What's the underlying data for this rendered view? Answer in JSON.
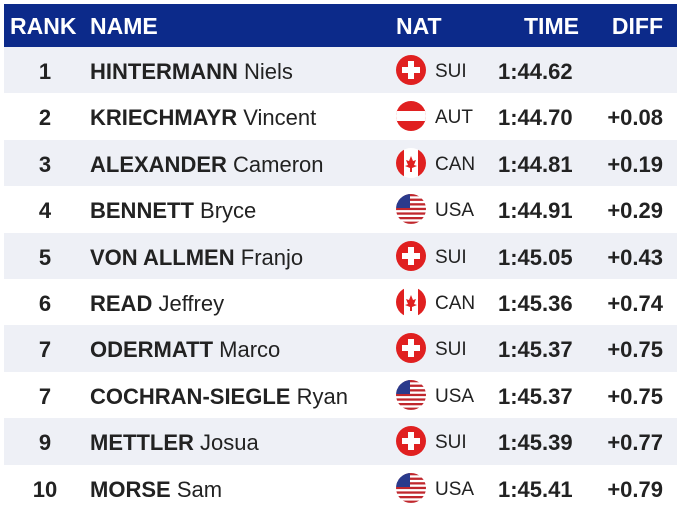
{
  "header": {
    "rank": "RANK",
    "name": "NAME",
    "nat": "NAT",
    "time": "TIME",
    "diff": "DIFF"
  },
  "colors": {
    "header_bg": "#0c2a8a",
    "row_alt": "#eef0f6"
  },
  "rows": [
    {
      "rank": "1",
      "last": "HINTERMANN",
      "first": "Niels",
      "nat": "SUI",
      "flag": "switzerland-flag-icon",
      "time": "1:44.62",
      "diff": ""
    },
    {
      "rank": "2",
      "last": "KRIECHMAYR",
      "first": "Vincent",
      "nat": "AUT",
      "flag": "austria-flag-icon",
      "time": "1:44.70",
      "diff": "+0.08"
    },
    {
      "rank": "3",
      "last": "ALEXANDER",
      "first": "Cameron",
      "nat": "CAN",
      "flag": "canada-flag-icon",
      "time": "1:44.81",
      "diff": "+0.19"
    },
    {
      "rank": "4",
      "last": "BENNETT",
      "first": "Bryce",
      "nat": "USA",
      "flag": "usa-flag-icon",
      "time": "1:44.91",
      "diff": "+0.29"
    },
    {
      "rank": "5",
      "last": "VON ALLMEN",
      "first": "Franjo",
      "nat": "SUI",
      "flag": "switzerland-flag-icon",
      "time": "1:45.05",
      "diff": "+0.43"
    },
    {
      "rank": "6",
      "last": "READ",
      "first": "Jeffrey",
      "nat": "CAN",
      "flag": "canada-flag-icon",
      "time": "1:45.36",
      "diff": "+0.74"
    },
    {
      "rank": "7",
      "last": "ODERMATT",
      "first": "Marco",
      "nat": "SUI",
      "flag": "switzerland-flag-icon",
      "time": "1:45.37",
      "diff": "+0.75"
    },
    {
      "rank": "7",
      "last": "COCHRAN-SIEGLE",
      "first": "Ryan",
      "nat": "USA",
      "flag": "usa-flag-icon",
      "time": "1:45.37",
      "diff": "+0.75"
    },
    {
      "rank": "9",
      "last": "METTLER",
      "first": "Josua",
      "nat": "SUI",
      "flag": "switzerland-flag-icon",
      "time": "1:45.39",
      "diff": "+0.77"
    },
    {
      "rank": "10",
      "last": "MORSE",
      "first": "Sam",
      "nat": "USA",
      "flag": "usa-flag-icon",
      "time": "1:45.41",
      "diff": "+0.79"
    }
  ]
}
